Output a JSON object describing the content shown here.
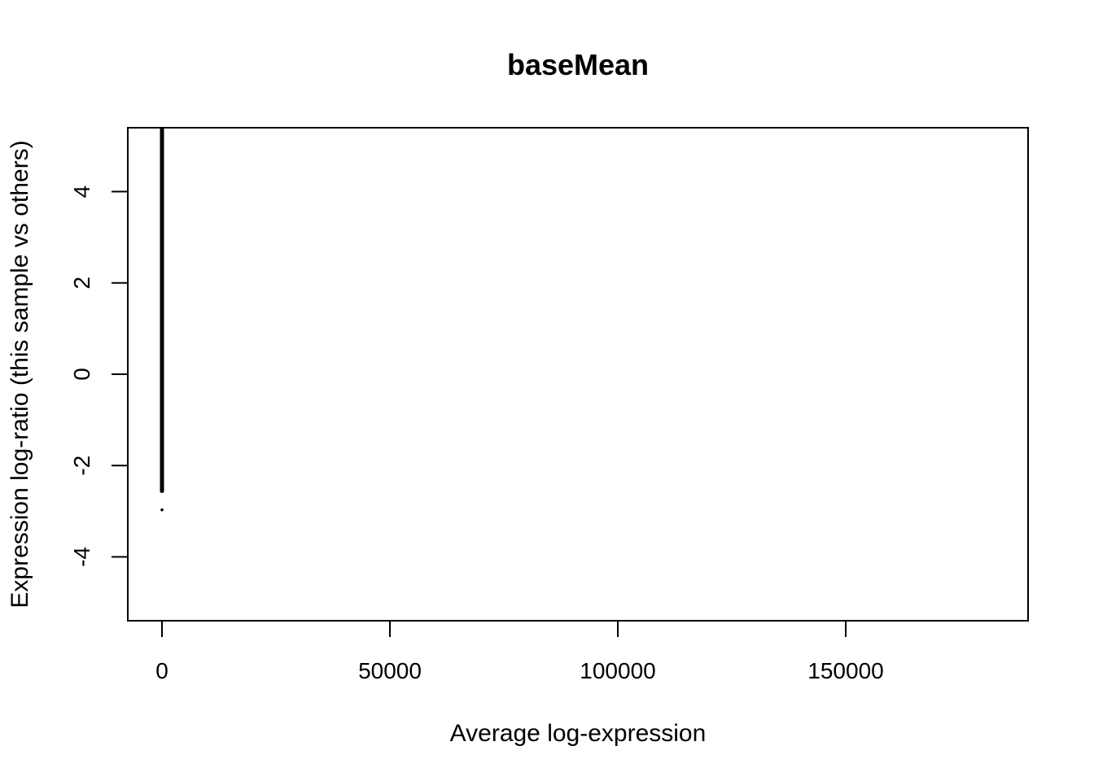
{
  "chart_data": {
    "type": "scatter",
    "title": "baseMean",
    "xlabel": "Average log-expression",
    "ylabel": "Expression log-ratio (this sample vs others)",
    "xlim": [
      -7500,
      190000
    ],
    "ylim": [
      -5.4,
      5.4
    ],
    "x_ticks": [
      0,
      50000,
      100000,
      150000
    ],
    "x_tick_labels": [
      "0",
      "50000",
      "100000",
      "150000"
    ],
    "y_ticks": [
      -4,
      -2,
      0,
      2,
      4
    ],
    "y_tick_labels": [
      "-4",
      "-2",
      "0",
      "2",
      "4"
    ],
    "grid": false,
    "legend": "none",
    "dense_band": {
      "x": 0,
      "y_min": -2.6,
      "y_max": 5.4
    },
    "points": [
      {
        "x": 0,
        "y": -2.97
      },
      {
        "x": 0,
        "y": -2.55
      },
      {
        "x": 0,
        "y": -2.5
      },
      {
        "x": 0,
        "y": -2.45
      },
      {
        "x": 0,
        "y": -2.38
      },
      {
        "x": 0,
        "y": -2.3
      },
      {
        "x": 0,
        "y": -2.2
      },
      {
        "x": 0,
        "y": -2.1
      },
      {
        "x": 0,
        "y": -1.95
      },
      {
        "x": 0,
        "y": -1.8
      },
      {
        "x": 0,
        "y": -1.6
      },
      {
        "x": 0,
        "y": -1.4
      },
      {
        "x": 0,
        "y": -1.25
      }
    ],
    "colors": {
      "points": "#000000",
      "frame": "#000000",
      "background": "#ffffff"
    }
  }
}
